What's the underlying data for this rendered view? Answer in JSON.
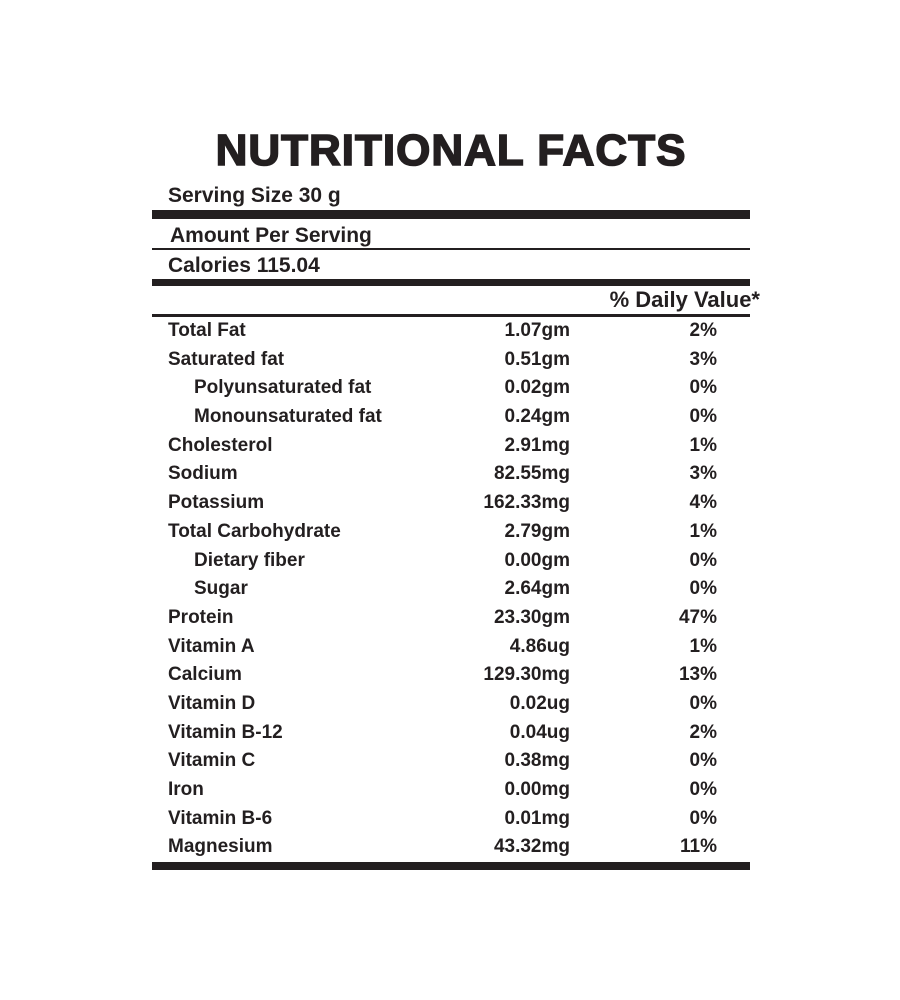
{
  "page": {
    "background_color": "#ffffff",
    "text_color": "#231f20"
  },
  "label": {
    "title": "NUTRITIONAL FACTS",
    "serving_size": "Serving Size 30 g",
    "amount_per_serving": "Amount Per Serving",
    "calories": "Calories 115.04",
    "daily_value_header": "% Daily Value*",
    "rows": [
      {
        "name": "Total Fat",
        "amount": "1.07gm",
        "daily_value": "2%",
        "indent": false
      },
      {
        "name": "Saturated fat",
        "amount": "0.51gm",
        "daily_value": "3%",
        "indent": false
      },
      {
        "name": "Polyunsaturated fat",
        "amount": "0.02gm",
        "daily_value": "0%",
        "indent": true
      },
      {
        "name": "Monounsaturated fat",
        "amount": "0.24gm",
        "daily_value": "0%",
        "indent": true
      },
      {
        "name": "Cholesterol",
        "amount": "2.91mg",
        "daily_value": "1%",
        "indent": false
      },
      {
        "name": "Sodium",
        "amount": "82.55mg",
        "daily_value": "3%",
        "indent": false
      },
      {
        "name": "Potassium",
        "amount": "162.33mg",
        "daily_value": "4%",
        "indent": false
      },
      {
        "name": "Total Carbohydrate",
        "amount": "2.79gm",
        "daily_value": "1%",
        "indent": false
      },
      {
        "name": "Dietary fiber",
        "amount": "0.00gm",
        "daily_value": "0%",
        "indent": true
      },
      {
        "name": "Sugar",
        "amount": "2.64gm",
        "daily_value": "0%",
        "indent": true
      },
      {
        "name": "Protein",
        "amount": "23.30gm",
        "daily_value": "47%",
        "indent": false
      },
      {
        "name": "Vitamin A",
        "amount": "4.86ug",
        "daily_value": "1%",
        "indent": false
      },
      {
        "name": "Calcium",
        "amount": "129.30mg",
        "daily_value": "13%",
        "indent": false
      },
      {
        "name": "Vitamin D",
        "amount": "0.02ug",
        "daily_value": "0%",
        "indent": false
      },
      {
        "name": "Vitamin B-12",
        "amount": "0.04ug",
        "daily_value": "2%",
        "indent": false
      },
      {
        "name": "Vitamin C",
        "amount": "0.38mg",
        "daily_value": "0%",
        "indent": false
      },
      {
        "name": "Iron",
        "amount": "0.00mg",
        "daily_value": "0%",
        "indent": false
      },
      {
        "name": "Vitamin B-6",
        "amount": "0.01mg",
        "daily_value": "0%",
        "indent": false
      },
      {
        "name": "Magnesium",
        "amount": "43.32mg",
        "daily_value": "11%",
        "indent": false
      }
    ]
  }
}
